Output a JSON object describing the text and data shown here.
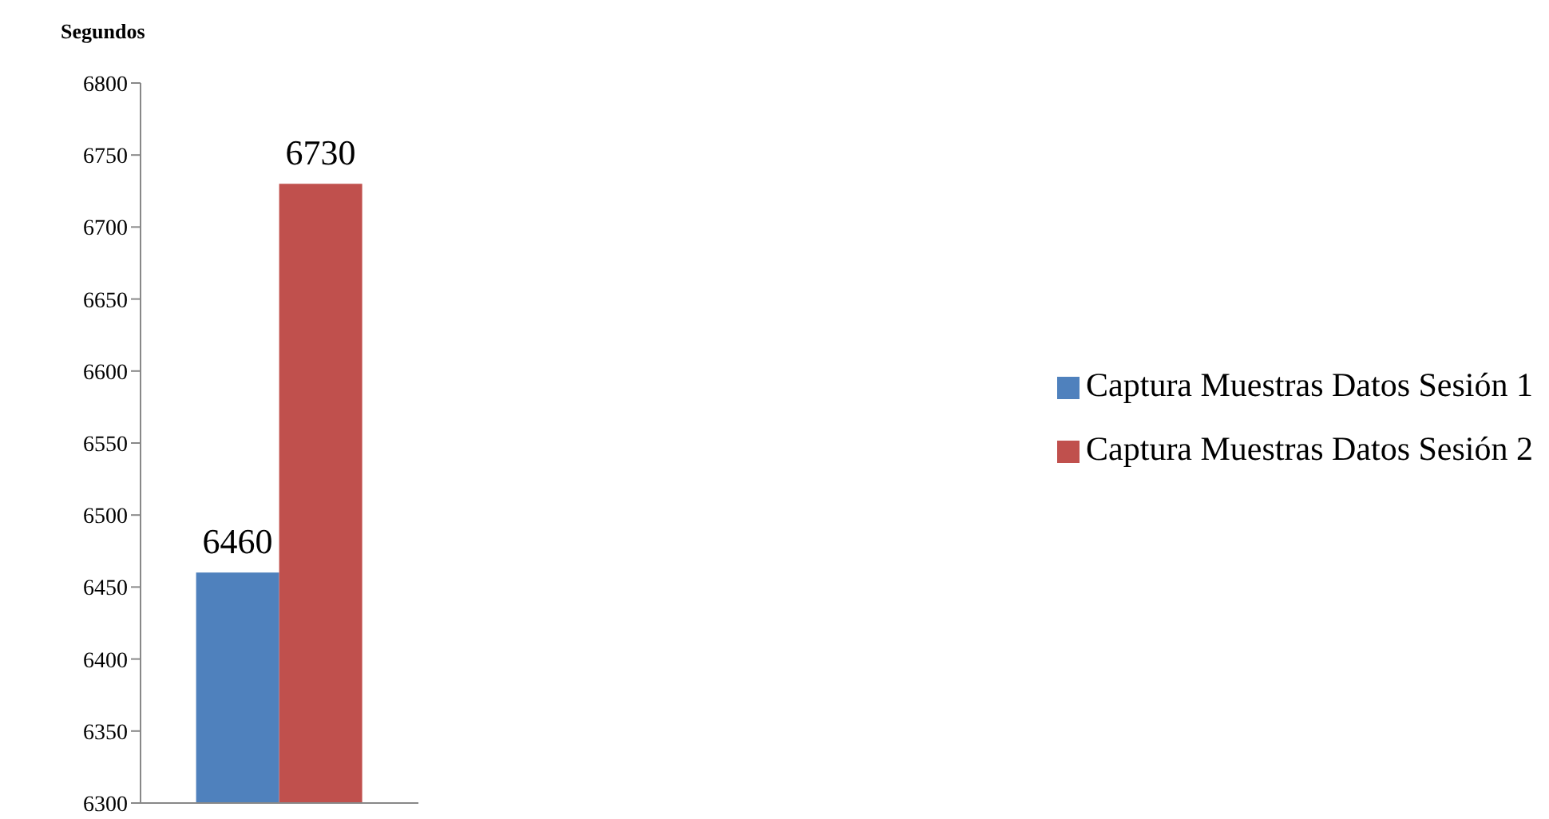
{
  "chart_data": {
    "type": "bar",
    "ylabel": "Segundos",
    "categories": [
      null
    ],
    "series": [
      {
        "name": "Captura Muestras Datos Sesión 1",
        "color": "#4f81bd",
        "values": [
          6460
        ]
      },
      {
        "name": "Captura Muestras Datos Sesión 2",
        "color": "#c0504d",
        "values": [
          6730
        ]
      }
    ],
    "ylim": [
      6300,
      6800
    ],
    "yticks": [
      6300,
      6350,
      6400,
      6450,
      6500,
      6550,
      6600,
      6650,
      6700,
      6750,
      6800
    ],
    "legend": "right",
    "data_labels": true
  }
}
